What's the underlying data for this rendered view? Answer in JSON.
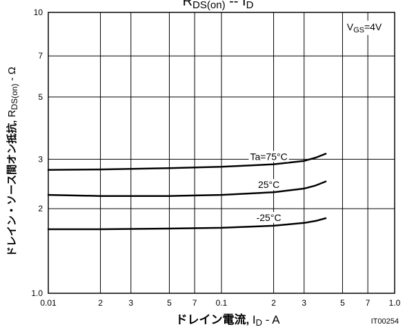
{
  "chart_data": {
    "type": "line",
    "title": "RDS(on) -- ID",
    "xlabel": "ドレイン電流, ID - A",
    "ylabel": "ドレイン・ソース間オン抵抗, RDS(on) - Ω",
    "x_scale": "log",
    "y_scale": "log",
    "xlim": [
      0.01,
      1.0
    ],
    "ylim": [
      1.0,
      10
    ],
    "x_ticks": [
      {
        "v": 0.01,
        "t": "0.01"
      },
      {
        "v": 0.02,
        "t": "2"
      },
      {
        "v": 0.03,
        "t": "3"
      },
      {
        "v": 0.05,
        "t": "5"
      },
      {
        "v": 0.07,
        "t": "7"
      },
      {
        "v": 0.1,
        "t": "0.1"
      },
      {
        "v": 0.2,
        "t": "2"
      },
      {
        "v": 0.3,
        "t": "3"
      },
      {
        "v": 0.5,
        "t": "5"
      },
      {
        "v": 0.7,
        "t": "7"
      },
      {
        "v": 1.0,
        "t": "1.0"
      }
    ],
    "y_ticks": [
      {
        "v": 1.0,
        "t": "1.0"
      },
      {
        "v": 2,
        "t": "2"
      },
      {
        "v": 3,
        "t": "3"
      },
      {
        "v": 5,
        "t": "5"
      },
      {
        "v": 7,
        "t": "7"
      },
      {
        "v": 10,
        "t": "10"
      }
    ],
    "grid": true,
    "annotation": "VGS=4V",
    "code": "IT00254",
    "series": [
      {
        "name": "Ta=75°C",
        "points": [
          [
            0.01,
            2.75
          ],
          [
            0.02,
            2.76
          ],
          [
            0.05,
            2.79
          ],
          [
            0.1,
            2.82
          ],
          [
            0.2,
            2.88
          ],
          [
            0.3,
            2.96
          ],
          [
            0.35,
            3.04
          ],
          [
            0.4,
            3.14
          ]
        ]
      },
      {
        "name": "25°C",
        "points": [
          [
            0.01,
            2.24
          ],
          [
            0.02,
            2.22
          ],
          [
            0.05,
            2.22
          ],
          [
            0.1,
            2.24
          ],
          [
            0.2,
            2.29
          ],
          [
            0.3,
            2.36
          ],
          [
            0.35,
            2.42
          ],
          [
            0.4,
            2.5
          ]
        ]
      },
      {
        "name": "-25°C",
        "points": [
          [
            0.01,
            1.69
          ],
          [
            0.02,
            1.69
          ],
          [
            0.05,
            1.7
          ],
          [
            0.1,
            1.71
          ],
          [
            0.2,
            1.74
          ],
          [
            0.3,
            1.78
          ],
          [
            0.35,
            1.81
          ],
          [
            0.4,
            1.85
          ]
        ]
      }
    ]
  }
}
